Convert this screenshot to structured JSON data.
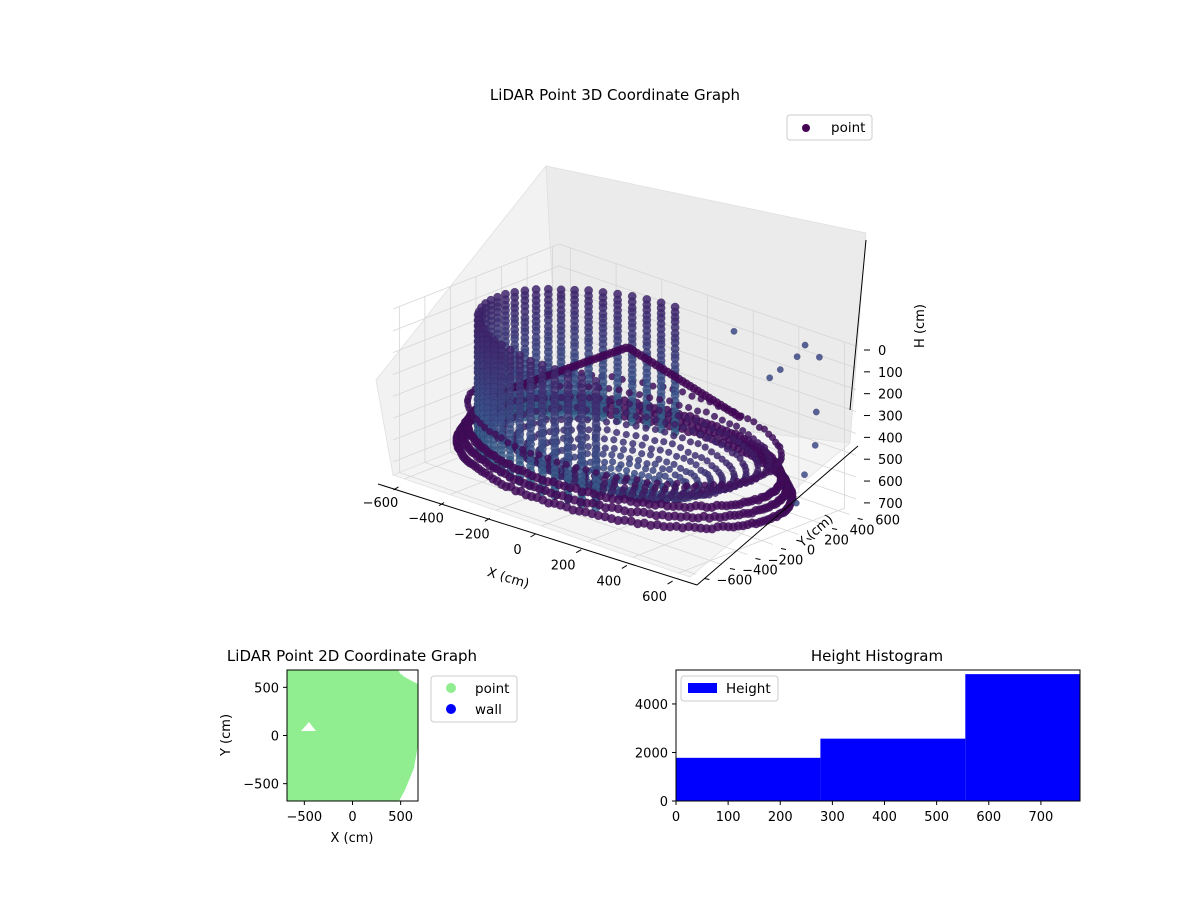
{
  "chart_data": [
    {
      "type": "scatter",
      "projection": "3d",
      "title": "LiDAR Point 3D Coordinate Graph",
      "xlabel": "X (cm)",
      "ylabel": "Y (cm)",
      "zlabel": "H (cm)",
      "xlim": [
        -650,
        650
      ],
      "ylim": [
        -650,
        650
      ],
      "zlim": [
        0,
        760
      ],
      "z_axis_inverted": true,
      "x_ticks": [
        "−600",
        "−400",
        "−200",
        "0",
        "200",
        "400",
        "600"
      ],
      "y_ticks": [
        "−600",
        "−400",
        "−200",
        "0",
        "200",
        "400",
        "600"
      ],
      "z_ticks": [
        "0",
        "100",
        "200",
        "300",
        "400",
        "500",
        "600",
        "700"
      ],
      "grid": true,
      "legend": {
        "placement": "upper right",
        "entries": [
          "point"
        ]
      },
      "colormap": "viridis",
      "colors": {
        "low": "#440154",
        "mid": "#3b528b",
        "high": "#21918c",
        "top": "#5ec962"
      },
      "series": [
        {
          "name": "point",
          "description_shape": "bowl-shaped room scan: outer ring near floor, vertical wall columns, ceiling arc"
        }
      ]
    },
    {
      "type": "scatter",
      "title": "LiDAR Point 2D Coordinate Graph",
      "xlabel": "X (cm)",
      "ylabel": "Y (cm)",
      "xlim": [
        -680,
        680
      ],
      "ylim": [
        -680,
        680
      ],
      "x_ticks": [
        "−500",
        "0",
        "500"
      ],
      "y_ticks": [
        "−500",
        "0",
        "500"
      ],
      "grid": false,
      "legend": {
        "placement": "outside right",
        "entries": [
          "point",
          "wall"
        ]
      },
      "colors": {
        "point": "#90ee90",
        "wall": "#0000ff"
      },
      "series": [
        {
          "name": "point"
        },
        {
          "name": "wall"
        }
      ]
    },
    {
      "type": "histogram",
      "title": "Height Histogram",
      "xlabel": "",
      "ylabel": "",
      "xlim": [
        0,
        775
      ],
      "ylim": [
        0,
        5400
      ],
      "x_ticks": [
        "0",
        "100",
        "200",
        "300",
        "400",
        "500",
        "600",
        "700"
      ],
      "y_ticks": [
        "0",
        "2000",
        "4000"
      ],
      "legend": {
        "placement": "upper left",
        "entries": [
          "Height"
        ]
      },
      "colors": {
        "bar": "#0000ff"
      },
      "bins": [
        {
          "start": 0,
          "end": 277,
          "count": 1780
        },
        {
          "start": 277,
          "end": 555,
          "count": 2570
        },
        {
          "start": 555,
          "end": 775,
          "count": 5230
        }
      ]
    }
  ]
}
